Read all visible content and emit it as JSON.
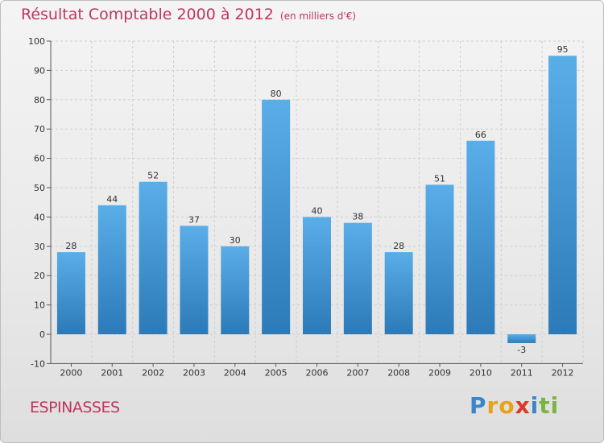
{
  "title": "Résultat Comptable 2000 à 2012",
  "subtitle": "(en milliers d'€)",
  "commune": "ESPINASSES",
  "logo": {
    "letters": [
      "P",
      "r",
      "o",
      "x",
      "i",
      "t",
      "i"
    ],
    "colors": [
      "#3a86c8",
      "#e8a21a",
      "#e8a21a",
      "#d93a2a",
      "#3a86c8",
      "#7cb342",
      "#7cb342"
    ]
  },
  "colors": {
    "title": "#c0365e",
    "bar_top": "#5aaee8",
    "bar_bottom": "#2c7ab8",
    "grid": "#cfcfcf",
    "axis": "#555555"
  },
  "chart_data": {
    "type": "bar",
    "title": "Résultat Comptable 2000 à 2012",
    "xlabel": "",
    "ylabel": "",
    "categories": [
      "2000",
      "2001",
      "2002",
      "2003",
      "2004",
      "2005",
      "2006",
      "2007",
      "2008",
      "2009",
      "2010",
      "2011",
      "2012"
    ],
    "values": [
      28,
      44,
      52,
      37,
      30,
      80,
      40,
      38,
      28,
      51,
      66,
      -3,
      95
    ],
    "ylim": [
      -10,
      100
    ],
    "yticks": [
      -10,
      0,
      10,
      20,
      30,
      40,
      50,
      60,
      70,
      80,
      90,
      100
    ],
    "grid": true
  }
}
